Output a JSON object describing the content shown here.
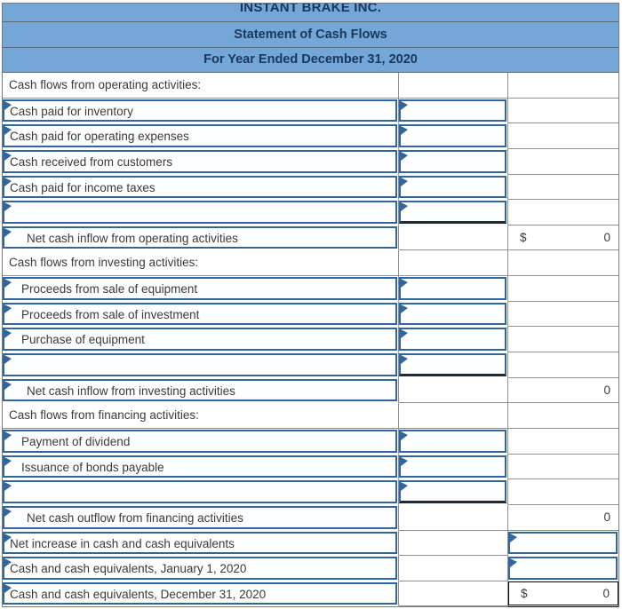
{
  "header": {
    "company": "INSTANT BRAKE INC.",
    "title": "Statement of Cash Flows",
    "period": "For Year Ended December 31, 2020"
  },
  "colors": {
    "header_bg": "#74a7d8",
    "header_text": "#17375e",
    "input_box_border": "#31659b",
    "grid_line": "#8f8f8f",
    "sum_line": "#1f2a35",
    "text": "#3a3a3a"
  },
  "icons": {
    "dropdown_marker": "dropdown-arrow-icon"
  },
  "rows": [
    {
      "type": "section",
      "label": "Cash flows from operating activities:"
    },
    {
      "type": "item",
      "label": "Cash paid for inventory",
      "indent": false
    },
    {
      "type": "item",
      "label": "Cash paid for operating expenses",
      "indent": false
    },
    {
      "type": "item",
      "label": "Cash received from customers",
      "indent": false
    },
    {
      "type": "item",
      "label": "Cash paid for income taxes",
      "indent": false
    },
    {
      "type": "item",
      "label": "",
      "indent": false,
      "sum_line": true
    },
    {
      "type": "subtotal",
      "label": "Net cash inflow from operating activities",
      "currency": "$",
      "value": "0"
    },
    {
      "type": "section",
      "label": "Cash flows from investing activities:"
    },
    {
      "type": "item",
      "label": "Proceeds from sale of equipment",
      "indent": true
    },
    {
      "type": "item",
      "label": "Proceeds from sale of investment",
      "indent": true
    },
    {
      "type": "item",
      "label": "Purchase of equipment",
      "indent": true
    },
    {
      "type": "item",
      "label": "",
      "indent": true,
      "sum_line": true
    },
    {
      "type": "subtotal",
      "label": "Net cash inflow from investing activities",
      "currency": "",
      "value": "0"
    },
    {
      "type": "section",
      "label": "Cash flows from financing activities:"
    },
    {
      "type": "item",
      "label": "Payment of dividend",
      "indent": true
    },
    {
      "type": "item",
      "label": "Issuance of bonds payable",
      "indent": true
    },
    {
      "type": "item",
      "label": "",
      "indent": true,
      "sum_line": true
    },
    {
      "type": "subtotal",
      "label": "Net cash outflow from financing activities",
      "currency": "",
      "value": "0"
    },
    {
      "type": "total_item",
      "label": "Net increase in cash and cash equivalents"
    },
    {
      "type": "total_item",
      "label": "Cash and cash equivalents, January 1, 2020"
    },
    {
      "type": "grand_total",
      "label": "Cash and cash equivalents, December 31, 2020",
      "currency": "$",
      "value": "0"
    }
  ]
}
